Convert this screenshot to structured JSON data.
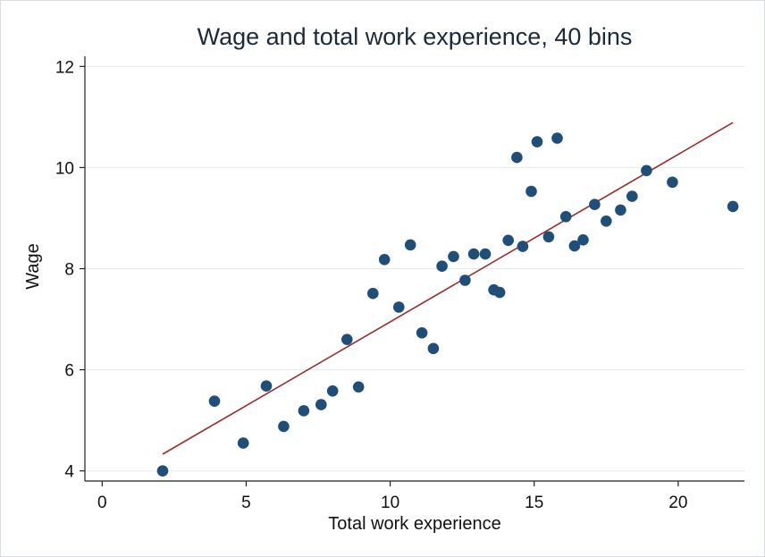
{
  "chart_data": {
    "type": "scatter",
    "title": "Wage and total work experience, 40 bins",
    "xlabel": "Total work experience",
    "ylabel": "Wage",
    "xlim": [
      -0.6,
      22.3
    ],
    "ylim": [
      3.8,
      12.2
    ],
    "xticks": [
      0,
      5,
      10,
      15,
      20
    ],
    "yticks": [
      4,
      6,
      8,
      10,
      12
    ],
    "grid": "horizontal",
    "marker_color": "#1f4e79",
    "line_color": "#9b2c2c",
    "series": [
      {
        "type": "scatter",
        "points": [
          [
            2.1,
            4.0
          ],
          [
            3.9,
            5.38
          ],
          [
            4.9,
            4.55
          ],
          [
            5.7,
            5.68
          ],
          [
            6.3,
            4.88
          ],
          [
            7.0,
            5.19
          ],
          [
            7.6,
            5.31
          ],
          [
            8.0,
            5.58
          ],
          [
            8.5,
            6.6
          ],
          [
            8.9,
            5.66
          ],
          [
            9.4,
            7.51
          ],
          [
            9.8,
            8.18
          ],
          [
            10.3,
            7.24
          ],
          [
            10.7,
            8.47
          ],
          [
            11.1,
            6.73
          ],
          [
            11.5,
            6.42
          ],
          [
            11.8,
            8.05
          ],
          [
            12.2,
            8.24
          ],
          [
            12.6,
            7.77
          ],
          [
            12.9,
            8.29
          ],
          [
            13.3,
            8.29
          ],
          [
            13.6,
            7.58
          ],
          [
            13.8,
            7.53
          ],
          [
            14.1,
            8.56
          ],
          [
            14.4,
            10.2
          ],
          [
            14.6,
            8.44
          ],
          [
            14.9,
            9.53
          ],
          [
            15.1,
            10.51
          ],
          [
            15.5,
            8.63
          ],
          [
            15.8,
            10.58
          ],
          [
            16.1,
            9.03
          ],
          [
            16.4,
            8.45
          ],
          [
            16.7,
            8.57
          ],
          [
            17.1,
            9.27
          ],
          [
            17.5,
            8.94
          ],
          [
            18.0,
            9.16
          ],
          [
            18.4,
            9.43
          ],
          [
            18.9,
            9.94
          ],
          [
            19.8,
            9.71
          ],
          [
            21.9,
            9.23
          ]
        ]
      },
      {
        "type": "line",
        "x": [
          2.1,
          21.9
        ],
        "y": [
          4.33,
          10.89
        ]
      }
    ]
  }
}
